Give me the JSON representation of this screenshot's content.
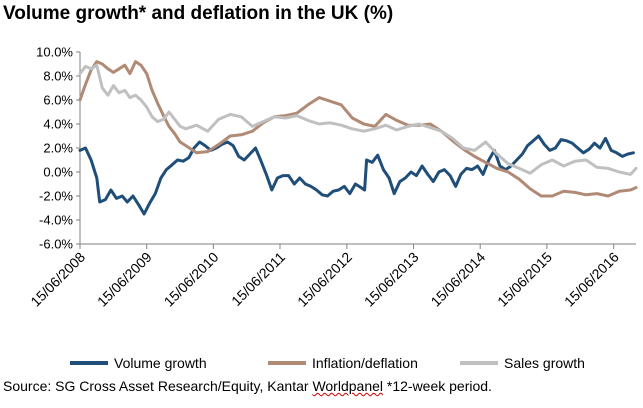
{
  "source": {
    "prefix": "Source: SG Cross Asset Research/Equity, Kantar ",
    "underlined": "Worldpanel",
    "suffix": " *12-week period."
  },
  "chart_data": {
    "type": "line",
    "title": "Volume growth* and deflation in the UK (%)",
    "xlabel": "",
    "ylabel": "",
    "x_range": [
      "2008-06-15",
      "2016-10-15"
    ],
    "ylim": [
      -6,
      10
    ],
    "y_ticks": [
      10,
      8,
      6,
      4,
      2,
      0,
      -2,
      -4,
      -6
    ],
    "y_tick_labels": [
      "10.0%",
      "8.0%",
      "6.0%",
      "4.0%",
      "2.0%",
      "0.0%",
      "-2.0%",
      "-4.0%",
      "-6.0%"
    ],
    "x_ticks": [
      "2008-06-15",
      "2009-06-15",
      "2010-06-15",
      "2011-06-15",
      "2012-06-15",
      "2013-06-15",
      "2014-06-15",
      "2015-06-15",
      "2016-06-15"
    ],
    "x_tick_labels": [
      "15/06/2008",
      "15/06/2009",
      "15/06/2010",
      "15/06/2011",
      "15/06/2012",
      "15/06/2013",
      "15/06/2014",
      "15/06/2015",
      "15/06/2016"
    ],
    "grid": false,
    "legend_position": "bottom",
    "series": [
      {
        "name": "Volume growth",
        "color": "#1f4e79",
        "points": [
          [
            "2008-06-15",
            1.8
          ],
          [
            "2008-07-15",
            2.0
          ],
          [
            "2008-08-15",
            1.0
          ],
          [
            "2008-09-15",
            -0.5
          ],
          [
            "2008-10-01",
            -2.5
          ],
          [
            "2008-11-01",
            -2.3
          ],
          [
            "2008-12-01",
            -1.5
          ],
          [
            "2009-01-01",
            -2.2
          ],
          [
            "2009-02-01",
            -2.0
          ],
          [
            "2009-03-01",
            -2.5
          ],
          [
            "2009-04-01",
            -2.0
          ],
          [
            "2009-05-01",
            -2.7
          ],
          [
            "2009-06-01",
            -3.5
          ],
          [
            "2009-07-01",
            -2.6
          ],
          [
            "2009-08-01",
            -1.8
          ],
          [
            "2009-09-01",
            -0.5
          ],
          [
            "2009-10-01",
            0.2
          ],
          [
            "2009-11-01",
            0.6
          ],
          [
            "2009-12-01",
            1.0
          ],
          [
            "2010-01-01",
            0.9
          ],
          [
            "2010-02-01",
            1.2
          ],
          [
            "2010-03-01",
            2.0
          ],
          [
            "2010-04-01",
            2.5
          ],
          [
            "2010-05-01",
            2.2
          ],
          [
            "2010-06-01",
            1.8
          ],
          [
            "2010-07-01",
            2.0
          ],
          [
            "2010-08-01",
            2.3
          ],
          [
            "2010-09-01",
            2.5
          ],
          [
            "2010-10-01",
            2.2
          ],
          [
            "2010-11-01",
            1.3
          ],
          [
            "2010-12-01",
            1.0
          ],
          [
            "2011-01-01",
            1.5
          ],
          [
            "2011-02-01",
            2.0
          ],
          [
            "2011-03-01",
            1.0
          ],
          [
            "2011-04-01",
            -0.2
          ],
          [
            "2011-05-01",
            -1.5
          ],
          [
            "2011-06-01",
            -0.5
          ],
          [
            "2011-07-01",
            -0.3
          ],
          [
            "2011-08-01",
            -0.3
          ],
          [
            "2011-09-01",
            -1.0
          ],
          [
            "2011-10-01",
            -0.5
          ],
          [
            "2011-11-01",
            -1.0
          ],
          [
            "2011-12-01",
            -1.2
          ],
          [
            "2012-01-01",
            -1.5
          ],
          [
            "2012-02-01",
            -1.9
          ],
          [
            "2012-03-01",
            -2.0
          ],
          [
            "2012-04-01",
            -1.6
          ],
          [
            "2012-05-01",
            -1.5
          ],
          [
            "2012-06-01",
            -1.2
          ],
          [
            "2012-07-01",
            -1.8
          ],
          [
            "2012-08-01",
            -1.0
          ],
          [
            "2012-09-01",
            -1.3
          ],
          [
            "2012-09-20",
            -1.5
          ],
          [
            "2012-10-01",
            1.0
          ],
          [
            "2012-11-01",
            0.8
          ],
          [
            "2012-12-01",
            1.4
          ],
          [
            "2013-01-01",
            0.2
          ],
          [
            "2013-02-01",
            -0.5
          ],
          [
            "2013-03-01",
            -1.8
          ],
          [
            "2013-04-01",
            -0.8
          ],
          [
            "2013-05-01",
            -0.5
          ],
          [
            "2013-06-01",
            0.0
          ],
          [
            "2013-07-01",
            -0.3
          ],
          [
            "2013-08-01",
            0.5
          ],
          [
            "2013-09-01",
            -0.2
          ],
          [
            "2013-10-01",
            -0.8
          ],
          [
            "2013-11-01",
            0.0
          ],
          [
            "2013-12-01",
            0.2
          ],
          [
            "2014-01-01",
            -0.3
          ],
          [
            "2014-02-01",
            -1.2
          ],
          [
            "2014-03-01",
            -0.2
          ],
          [
            "2014-04-01",
            0.3
          ],
          [
            "2014-05-01",
            0.2
          ],
          [
            "2014-06-01",
            0.5
          ],
          [
            "2014-07-01",
            -0.2
          ],
          [
            "2014-08-01",
            1.0
          ],
          [
            "2014-09-01",
            1.8
          ],
          [
            "2014-10-01",
            0.5
          ],
          [
            "2014-11-01",
            0.2
          ],
          [
            "2014-12-01",
            0.5
          ],
          [
            "2015-01-01",
            1.0
          ],
          [
            "2015-02-01",
            1.5
          ],
          [
            "2015-03-01",
            2.2
          ],
          [
            "2015-04-01",
            2.6
          ],
          [
            "2015-05-01",
            3.0
          ],
          [
            "2015-06-01",
            2.3
          ],
          [
            "2015-07-01",
            1.8
          ],
          [
            "2015-08-01",
            2.0
          ],
          [
            "2015-09-01",
            2.7
          ],
          [
            "2015-10-01",
            2.6
          ],
          [
            "2015-11-01",
            2.4
          ],
          [
            "2015-12-01",
            2.0
          ],
          [
            "2016-01-01",
            1.6
          ],
          [
            "2016-02-01",
            1.9
          ],
          [
            "2016-03-01",
            2.4
          ],
          [
            "2016-04-01",
            2.0
          ],
          [
            "2016-05-01",
            2.8
          ],
          [
            "2016-06-01",
            1.8
          ],
          [
            "2016-07-01",
            1.6
          ],
          [
            "2016-08-01",
            1.3
          ],
          [
            "2016-09-01",
            1.5
          ],
          [
            "2016-10-01",
            1.6
          ]
        ]
      },
      {
        "name": "Inflation/deflation",
        "color": "#b08a74",
        "points": [
          [
            "2008-06-15",
            6.0
          ],
          [
            "2008-07-15",
            7.3
          ],
          [
            "2008-08-15",
            8.5
          ],
          [
            "2008-09-15",
            9.2
          ],
          [
            "2008-10-15",
            9.0
          ],
          [
            "2008-11-15",
            8.6
          ],
          [
            "2008-12-15",
            8.3
          ],
          [
            "2009-01-15",
            8.6
          ],
          [
            "2009-02-15",
            8.9
          ],
          [
            "2009-03-15",
            8.2
          ],
          [
            "2009-04-15",
            9.2
          ],
          [
            "2009-05-15",
            8.9
          ],
          [
            "2009-06-15",
            8.2
          ],
          [
            "2009-07-15",
            6.8
          ],
          [
            "2009-08-15",
            5.7
          ],
          [
            "2009-09-15",
            4.7
          ],
          [
            "2009-10-15",
            3.8
          ],
          [
            "2009-11-15",
            3.2
          ],
          [
            "2009-12-15",
            2.5
          ],
          [
            "2010-01-15",
            2.2
          ],
          [
            "2010-03-15",
            1.6
          ],
          [
            "2010-05-15",
            1.7
          ],
          [
            "2010-07-15",
            2.3
          ],
          [
            "2010-09-15",
            3.0
          ],
          [
            "2010-11-15",
            3.1
          ],
          [
            "2011-01-15",
            3.4
          ],
          [
            "2011-03-15",
            4.1
          ],
          [
            "2011-05-15",
            4.6
          ],
          [
            "2011-07-15",
            4.7
          ],
          [
            "2011-09-15",
            4.9
          ],
          [
            "2011-11-15",
            5.6
          ],
          [
            "2012-01-15",
            6.2
          ],
          [
            "2012-03-15",
            5.9
          ],
          [
            "2012-05-15",
            5.6
          ],
          [
            "2012-07-15",
            4.5
          ],
          [
            "2012-09-15",
            4.0
          ],
          [
            "2012-11-15",
            3.8
          ],
          [
            "2013-01-15",
            4.8
          ],
          [
            "2013-03-15",
            4.3
          ],
          [
            "2013-05-15",
            3.9
          ],
          [
            "2013-07-15",
            3.9
          ],
          [
            "2013-09-15",
            4.0
          ],
          [
            "2013-11-15",
            3.4
          ],
          [
            "2014-01-15",
            2.6
          ],
          [
            "2014-03-15",
            1.9
          ],
          [
            "2014-05-15",
            1.3
          ],
          [
            "2014-07-15",
            0.8
          ],
          [
            "2014-09-15",
            0.3
          ],
          [
            "2014-11-15",
            0.0
          ],
          [
            "2015-01-15",
            -0.6
          ],
          [
            "2015-03-15",
            -1.4
          ],
          [
            "2015-05-15",
            -2.0
          ],
          [
            "2015-07-15",
            -2.0
          ],
          [
            "2015-09-15",
            -1.6
          ],
          [
            "2015-11-15",
            -1.7
          ],
          [
            "2016-01-15",
            -1.9
          ],
          [
            "2016-03-15",
            -1.8
          ],
          [
            "2016-05-15",
            -2.0
          ],
          [
            "2016-07-15",
            -1.6
          ],
          [
            "2016-09-15",
            -1.5
          ],
          [
            "2016-10-15",
            -1.3
          ]
        ]
      },
      {
        "name": "Sales growth",
        "color": "#c0c0c0",
        "points": [
          [
            "2008-06-15",
            8.2
          ],
          [
            "2008-07-15",
            8.8
          ],
          [
            "2008-08-15",
            8.6
          ],
          [
            "2008-09-15",
            8.9
          ],
          [
            "2008-10-15",
            7.0
          ],
          [
            "2008-11-15",
            6.4
          ],
          [
            "2008-12-15",
            7.2
          ],
          [
            "2009-01-15",
            6.6
          ],
          [
            "2009-02-15",
            6.8
          ],
          [
            "2009-03-15",
            6.2
          ],
          [
            "2009-04-15",
            6.4
          ],
          [
            "2009-05-15",
            6.0
          ],
          [
            "2009-06-15",
            5.4
          ],
          [
            "2009-07-15",
            4.6
          ],
          [
            "2009-08-15",
            4.2
          ],
          [
            "2009-09-15",
            4.4
          ],
          [
            "2009-10-15",
            5.0
          ],
          [
            "2009-11-15",
            4.4
          ],
          [
            "2009-12-15",
            3.8
          ],
          [
            "2010-01-15",
            3.6
          ],
          [
            "2010-03-15",
            3.9
          ],
          [
            "2010-05-15",
            3.4
          ],
          [
            "2010-07-15",
            4.4
          ],
          [
            "2010-09-15",
            4.8
          ],
          [
            "2010-11-15",
            4.6
          ],
          [
            "2011-01-15",
            3.8
          ],
          [
            "2011-03-15",
            4.2
          ],
          [
            "2011-05-15",
            4.6
          ],
          [
            "2011-07-15",
            4.5
          ],
          [
            "2011-09-15",
            4.7
          ],
          [
            "2011-11-15",
            4.3
          ],
          [
            "2012-01-15",
            4.0
          ],
          [
            "2012-03-15",
            4.1
          ],
          [
            "2012-05-15",
            3.9
          ],
          [
            "2012-07-15",
            3.6
          ],
          [
            "2012-09-15",
            3.4
          ],
          [
            "2012-11-15",
            3.6
          ],
          [
            "2013-01-15",
            3.9
          ],
          [
            "2013-03-15",
            3.5
          ],
          [
            "2013-05-15",
            3.8
          ],
          [
            "2013-07-15",
            4.0
          ],
          [
            "2013-09-15",
            3.7
          ],
          [
            "2013-11-15",
            3.4
          ],
          [
            "2014-01-15",
            2.8
          ],
          [
            "2014-03-15",
            2.0
          ],
          [
            "2014-05-15",
            1.8
          ],
          [
            "2014-07-15",
            2.5
          ],
          [
            "2014-09-15",
            1.5
          ],
          [
            "2014-11-15",
            0.7
          ],
          [
            "2015-01-15",
            0.3
          ],
          [
            "2015-03-15",
            -0.1
          ],
          [
            "2015-05-15",
            0.6
          ],
          [
            "2015-07-15",
            1.0
          ],
          [
            "2015-09-15",
            0.5
          ],
          [
            "2015-11-15",
            0.9
          ],
          [
            "2016-01-15",
            1.0
          ],
          [
            "2016-03-15",
            0.4
          ],
          [
            "2016-05-15",
            0.3
          ],
          [
            "2016-07-15",
            0.0
          ],
          [
            "2016-09-15",
            -0.2
          ],
          [
            "2016-10-15",
            0.3
          ]
        ]
      }
    ]
  }
}
